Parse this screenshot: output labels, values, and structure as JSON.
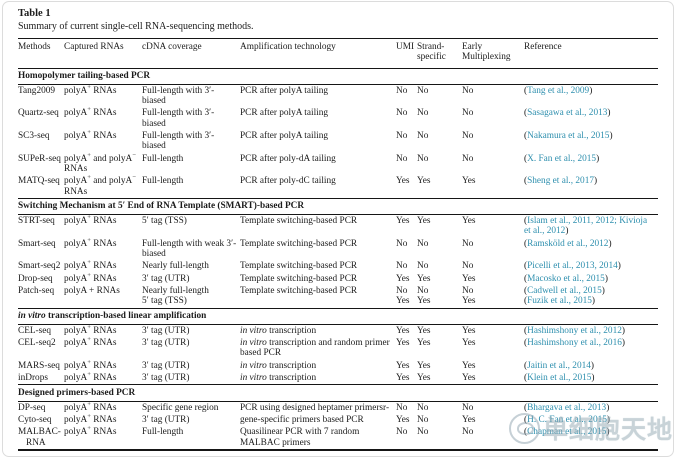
{
  "page": {
    "title": "Table 1",
    "subtitle": "Summary of current single-cell RNA-sequencing methods."
  },
  "watermark": {
    "text": "单细胞天地"
  },
  "link_color": "#2e8fae",
  "table": {
    "columns": [
      "Methods",
      "Captured RNAs",
      "cDNA coverage",
      "Amplification technology",
      "UMI",
      "Strand-specific",
      "Early Multiplexing",
      "Reference"
    ],
    "sections": [
      {
        "header": "Homopolymer tailing-based PCR",
        "rows": [
          {
            "method": "Tang2009",
            "captured": [
              {
                "t": "polyA"
              },
              {
                "t": "+",
                "sup": true
              },
              {
                "t": " RNAs"
              }
            ],
            "coverage": "Full-length with 3′-biased",
            "amplification": "PCR after polyA tailing",
            "umi": "No",
            "strand": "No",
            "early": "No",
            "refs": [
              "Tang et al., 2009"
            ]
          },
          {
            "method": "Quartz-seq",
            "captured": [
              {
                "t": "polyA"
              },
              {
                "t": "+",
                "sup": true
              },
              {
                "t": " RNAs"
              }
            ],
            "coverage": "Full-length with 3′-biased",
            "amplification": "PCR after polyA tailing",
            "umi": "No",
            "strand": "No",
            "early": "No",
            "refs": [
              "Sasagawa et al., 2013"
            ]
          },
          {
            "method": "SC3-seq",
            "captured": [
              {
                "t": "polyA"
              },
              {
                "t": "+",
                "sup": true
              },
              {
                "t": " RNAs"
              }
            ],
            "coverage": "Full-length with 3′-biased",
            "amplification": "PCR after polyA tailing",
            "umi": "No",
            "strand": "No",
            "early": "No",
            "refs": [
              "Nakamura et al., 2015"
            ]
          },
          {
            "method": "SUPeR-seq",
            "captured": [
              {
                "t": "polyA"
              },
              {
                "t": "+",
                "sup": true
              },
              {
                "t": " and polyA"
              },
              {
                "t": "−",
                "sup": true
              },
              {
                "t": " RNAs"
              }
            ],
            "coverage": "Full-length",
            "amplification": "PCR after poly-dA tailing",
            "umi": "No",
            "strand": "No",
            "early": "No",
            "refs": [
              "X. Fan et al., 2015"
            ]
          },
          {
            "method": "MATQ-seq",
            "captured": [
              {
                "t": "polyA"
              },
              {
                "t": "+",
                "sup": true
              },
              {
                "t": " and polyA"
              },
              {
                "t": "−",
                "sup": true
              },
              {
                "t": " RNAs"
              }
            ],
            "coverage": "Full-length",
            "amplification": "PCR after poly-dC tailing",
            "umi": "Yes",
            "strand": "Yes",
            "early": "Yes",
            "refs": [
              "Sheng et al., 2017"
            ]
          }
        ]
      },
      {
        "header": "Switching Mechanism at 5′ End of RNA Template (SMART)-based PCR",
        "rows": [
          {
            "method": "STRT-seq",
            "captured": [
              {
                "t": "polyA"
              },
              {
                "t": "+",
                "sup": true
              },
              {
                "t": " RNAs"
              }
            ],
            "coverage": "5′ tag (TSS)",
            "amplification": "Template switching-based PCR",
            "umi": "Yes",
            "strand": "Yes",
            "early": "Yes",
            "refs": [
              "Islam et al., 2011, 2012; Kivioja et al., 2012"
            ]
          },
          {
            "method": "Smart-seq",
            "captured": [
              {
                "t": "polyA"
              },
              {
                "t": "+",
                "sup": true
              },
              {
                "t": " RNAs"
              }
            ],
            "coverage": "Full-length with weak 3′-biased",
            "amplification": "Template switching-based PCR",
            "umi": "No",
            "strand": "No",
            "early": "No",
            "refs": [
              "Ramsköld et al., 2012"
            ]
          },
          {
            "method": "Smart-seq2",
            "captured": [
              {
                "t": "polyA"
              },
              {
                "t": "+",
                "sup": true
              },
              {
                "t": " RNAs"
              }
            ],
            "coverage": "Nearly full-length",
            "amplification": "Template switching-based PCR",
            "umi": "No",
            "strand": "No",
            "early": "No",
            "refs": [
              "Picelli et al., 2013, 2014"
            ]
          },
          {
            "method": "Drop-seq",
            "captured": [
              {
                "t": "polyA"
              },
              {
                "t": "+",
                "sup": true
              },
              {
                "t": " RNAs"
              }
            ],
            "coverage": "3′ tag (UTR)",
            "amplification": "Template switching-based PCR",
            "umi": "Yes",
            "strand": "Yes",
            "early": "Yes",
            "refs": [
              "Macosko et al., 2015"
            ]
          },
          {
            "method": "Patch-seq",
            "captured": "polyA + RNAs",
            "coverage": {
              "lines": [
                "Nearly full-length",
                "5′ tag (TSS)"
              ]
            },
            "amplification": "Template switching-based PCR",
            "umi": {
              "lines": [
                "No",
                "Yes"
              ]
            },
            "strand": {
              "lines": [
                "No",
                "Yes"
              ]
            },
            "early": {
              "lines": [
                "No",
                "Yes"
              ]
            },
            "refs": [
              "Cadwell et al., 2015",
              "Fuzik et al., 2015"
            ]
          }
        ]
      },
      {
        "header": [
          {
            "t": "in vitro",
            "i": true
          },
          {
            "t": " transcription-based linear amplification"
          }
        ],
        "rows": [
          {
            "method": "CEL-seq",
            "captured": [
              {
                "t": "polyA"
              },
              {
                "t": "+",
                "sup": true
              },
              {
                "t": " RNAs"
              }
            ],
            "coverage": "3′ tag (UTR)",
            "amplification": [
              {
                "t": "in vitro",
                "i": true
              },
              {
                "t": " transcription"
              }
            ],
            "umi": "Yes",
            "strand": "Yes",
            "early": "Yes",
            "refs": [
              "Hashimshony et al., 2012"
            ]
          },
          {
            "method": "CEL-seq2",
            "captured": [
              {
                "t": "polyA"
              },
              {
                "t": "+",
                "sup": true
              },
              {
                "t": " RNAs"
              }
            ],
            "coverage": "3′ tag (UTR)",
            "amplification": [
              {
                "t": "in vitro",
                "i": true
              },
              {
                "t": " transcription and random primer based PCR"
              }
            ],
            "umi": "Yes",
            "strand": "Yes",
            "early": "Yes",
            "refs": [
              "Hashimshony et al., 2016"
            ]
          },
          {
            "method": "MARS-seq",
            "captured": [
              {
                "t": "polyA"
              },
              {
                "t": "+",
                "sup": true
              },
              {
                "t": " RNAs"
              }
            ],
            "coverage": "3′ tag (UTR)",
            "amplification": [
              {
                "t": "in vitro",
                "i": true
              },
              {
                "t": " transcription"
              }
            ],
            "umi": "Yes",
            "strand": "Yes",
            "early": "Yes",
            "refs": [
              "Jaitin et al., 2014"
            ]
          },
          {
            "method": "inDrops",
            "captured": [
              {
                "t": "polyA"
              },
              {
                "t": "+",
                "sup": true
              },
              {
                "t": " RNAs"
              }
            ],
            "coverage": "3′ tag (UTR)",
            "amplification": [
              {
                "t": "in vitro",
                "i": true
              },
              {
                "t": " transcription"
              }
            ],
            "umi": "Yes",
            "strand": "Yes",
            "early": "Yes",
            "refs": [
              "Klein et al., 2015"
            ]
          }
        ]
      },
      {
        "header": "Designed primers-based PCR",
        "rows": [
          {
            "method": "DP-seq",
            "captured": [
              {
                "t": "polyA"
              },
              {
                "t": "+",
                "sup": true
              },
              {
                "t": " RNAs"
              }
            ],
            "coverage": "Specific gene region",
            "amplification": "PCR using designed heptamer primersr-",
            "umi": "No",
            "strand": "No",
            "early": "No",
            "refs": [
              "Bhargava et al., 2013"
            ]
          },
          {
            "method": "Cyto-seq",
            "captured": [
              {
                "t": "polyA"
              },
              {
                "t": "+",
                "sup": true
              },
              {
                "t": " RNAs"
              }
            ],
            "coverage": "3′ tag (UTR)",
            "amplification": "gene-specific primers based PCR",
            "umi": "Yes",
            "strand": "No",
            "early": "Yes",
            "refs": [
              "H. C. Fan et al., 2015"
            ]
          },
          {
            "method": "MALBAC-RNA",
            "captured": [
              {
                "t": "polyA"
              },
              {
                "t": "+",
                "sup": true
              },
              {
                "t": " RNAs"
              }
            ],
            "coverage": "Full-length",
            "amplification": "Quasilinear PCR with 7 random MALBAC primers",
            "umi": "No",
            "strand": "No",
            "early": "No",
            "refs": [
              "Chapman et al., 2015"
            ]
          }
        ]
      }
    ]
  }
}
